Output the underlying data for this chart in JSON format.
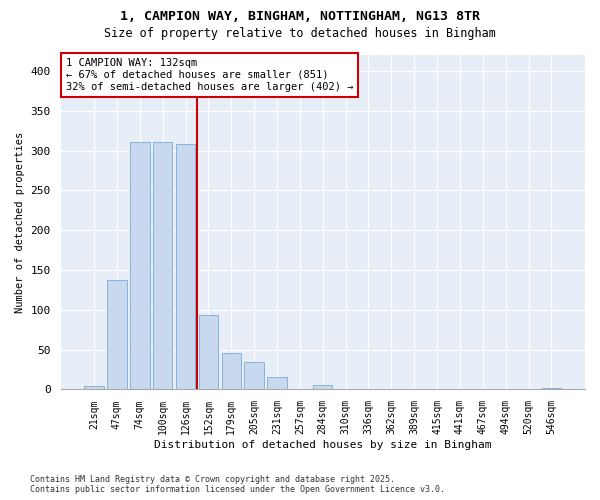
{
  "title1": "1, CAMPION WAY, BINGHAM, NOTTINGHAM, NG13 8TR",
  "title2": "Size of property relative to detached houses in Bingham",
  "xlabel": "Distribution of detached houses by size in Bingham",
  "ylabel": "Number of detached properties",
  "bar_color": "#c8d8ee",
  "bar_edge_color": "#7aaad4",
  "categories": [
    "21sqm",
    "47sqm",
    "74sqm",
    "100sqm",
    "126sqm",
    "152sqm",
    "179sqm",
    "205sqm",
    "231sqm",
    "257sqm",
    "284sqm",
    "310sqm",
    "336sqm",
    "362sqm",
    "389sqm",
    "415sqm",
    "441sqm",
    "467sqm",
    "494sqm",
    "520sqm",
    "546sqm"
  ],
  "values": [
    4,
    137,
    311,
    311,
    308,
    93,
    46,
    34,
    16,
    1,
    6,
    1,
    0,
    0,
    0,
    0,
    0,
    0,
    0,
    0,
    2
  ],
  "vline_index": 4,
  "vline_color": "#cc0000",
  "annotation_text": "1 CAMPION WAY: 132sqm\n← 67% of detached houses are smaller (851)\n32% of semi-detached houses are larger (402) →",
  "annotation_box_facecolor": "#ffffff",
  "annotation_box_edgecolor": "#cc0000",
  "ylim": [
    0,
    420
  ],
  "yticks": [
    0,
    50,
    100,
    150,
    200,
    250,
    300,
    350,
    400
  ],
  "footnote1": "Contains HM Land Registry data © Crown copyright and database right 2025.",
  "footnote2": "Contains public sector information licensed under the Open Government Licence v3.0.",
  "bg_color": "#ffffff",
  "plot_bg_color": "#e8eef8",
  "grid_color": "#ffffff",
  "title1_fontsize": 9.5,
  "title2_fontsize": 8.5
}
